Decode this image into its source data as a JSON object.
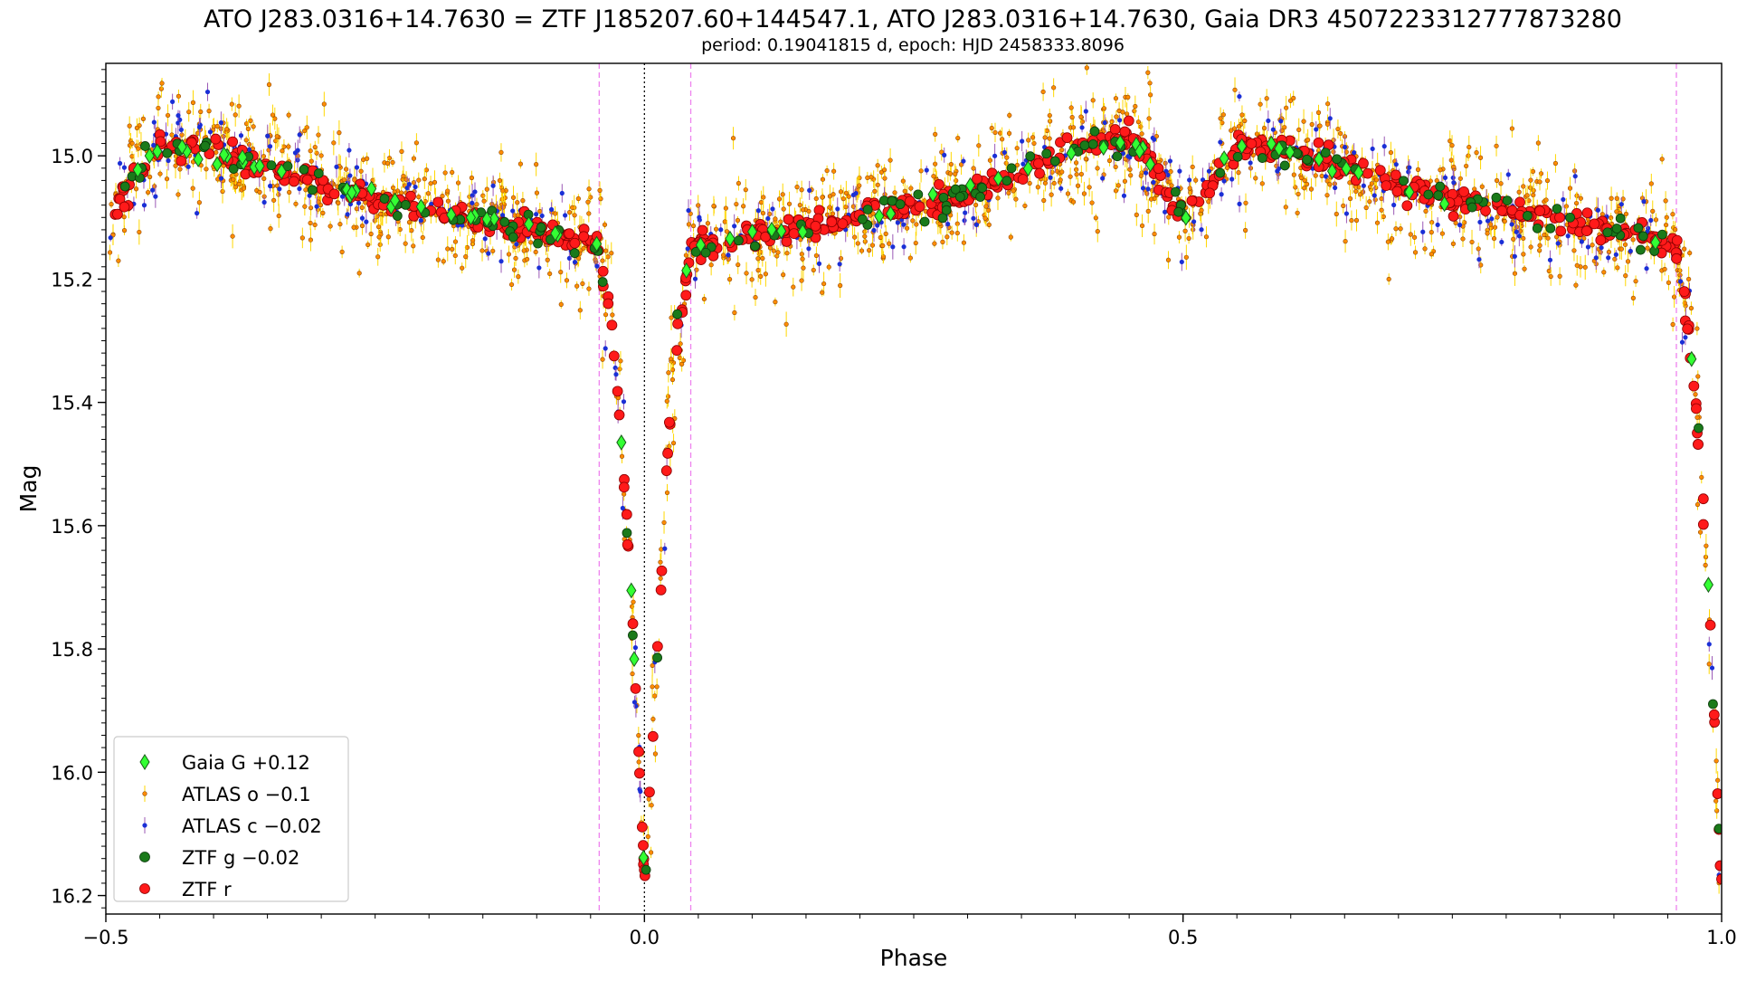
{
  "chart_data": {
    "type": "scatter",
    "title": "ATO J283.0316+14.7630 = ZTF J185207.60+144547.1, ATO J283.0316+14.7630, Gaia DR3 4507223312777873280",
    "subtitle": "period: 0.19041815 d, epoch: HJD 2458333.8096",
    "xlabel": "Phase",
    "ylabel": "Mag",
    "xlim": [
      -0.5,
      1.0
    ],
    "ylim": [
      16.23,
      14.85
    ],
    "y_inverted": true,
    "x_ticks": [
      {
        "value": -0.5,
        "label": "−0.5"
      },
      {
        "value": 0.0,
        "label": "0.0"
      },
      {
        "value": 0.5,
        "label": "0.5"
      },
      {
        "value": 1.0,
        "label": "1.0"
      }
    ],
    "y_ticks": [
      {
        "value": 15.0,
        "label": "15.0"
      },
      {
        "value": 15.2,
        "label": "15.2"
      },
      {
        "value": 15.4,
        "label": "15.4"
      },
      {
        "value": 15.6,
        "label": "15.6"
      },
      {
        "value": 15.8,
        "label": "15.8"
      },
      {
        "value": 16.0,
        "label": "16.0"
      },
      {
        "value": 16.2,
        "label": "16.2"
      }
    ],
    "grid": false,
    "legend_position": "bottom-left",
    "vertical_lines": [
      {
        "x": -0.042,
        "style": "dashed",
        "color": "#ee82ee"
      },
      {
        "x": 0.0,
        "style": "dotted",
        "color": "#000000"
      },
      {
        "x": 0.043,
        "style": "dashed",
        "color": "#ee82ee"
      },
      {
        "x": 0.958,
        "style": "dashed",
        "color": "#ee82ee"
      }
    ],
    "light_curve_model": {
      "description_values": "approximate median magnitude vs phase read from the plot",
      "knots": [
        [
          0.0,
          16.18
        ],
        [
          0.008,
          15.95
        ],
        [
          0.015,
          15.7
        ],
        [
          0.022,
          15.48
        ],
        [
          0.03,
          15.3
        ],
        [
          0.043,
          15.15
        ],
        [
          0.1,
          15.13
        ],
        [
          0.2,
          15.1
        ],
        [
          0.3,
          15.06
        ],
        [
          0.4,
          14.99
        ],
        [
          0.45,
          14.97
        ],
        [
          0.47,
          15.01
        ],
        [
          0.5,
          15.1
        ],
        [
          0.52,
          15.06
        ],
        [
          0.55,
          14.98
        ],
        [
          0.6,
          14.99
        ],
        [
          0.7,
          15.05
        ],
        [
          0.8,
          15.09
        ],
        [
          0.9,
          15.12
        ],
        [
          0.95,
          15.14
        ],
        [
          0.958,
          15.16
        ],
        [
          0.968,
          15.26
        ],
        [
          0.975,
          15.38
        ],
        [
          0.982,
          15.55
        ],
        [
          0.988,
          15.72
        ],
        [
          0.993,
          15.9
        ],
        [
          1.0,
          16.18
        ]
      ]
    },
    "series": [
      {
        "name": "Gaia G +0.12",
        "marker": "diamond",
        "color": "#33ff33",
        "edge": "#1a5c1a",
        "n_points": 70,
        "scatter": 0.006,
        "seed": 11
      },
      {
        "name": "ATLAS o −0.1",
        "marker": "small-circle",
        "color": "#ff8c00",
        "edge": "#8b4500",
        "errbar": "#ffd700",
        "n_points": 1500,
        "scatter": 0.045,
        "seed": 23
      },
      {
        "name": "ATLAS c −0.02",
        "marker": "small-circle",
        "color": "#1a2fd6",
        "edge": "#1a2fd6",
        "errbar": "#9b59b6",
        "n_points": 380,
        "scatter": 0.035,
        "seed": 37
      },
      {
        "name": "ZTF g −0.02",
        "marker": "circle",
        "color": "#1a7a1a",
        "edge": "#0a3a0a",
        "n_points": 150,
        "scatter": 0.012,
        "seed": 41
      },
      {
        "name": "ZTF r",
        "marker": "circle",
        "color": "#ff1a1a",
        "edge": "#8b0000",
        "n_points": 650,
        "scatter": 0.01,
        "seed": 53
      }
    ]
  }
}
